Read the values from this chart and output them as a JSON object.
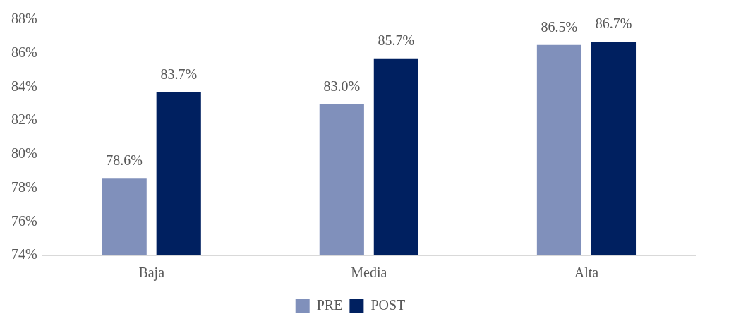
{
  "chart_data": {
    "type": "bar",
    "categories": [
      "Baja",
      "Media",
      "Alta"
    ],
    "series": [
      {
        "name": "PRE",
        "color": "#8090bb",
        "values": [
          78.6,
          83.0,
          86.5
        ],
        "value_labels": [
          "78.6%",
          "83.0%",
          "86.5%"
        ]
      },
      {
        "name": "POST",
        "color": "#002060",
        "values": [
          83.7,
          85.7,
          86.7
        ],
        "value_labels": [
          "83.7%",
          "85.7%",
          "86.7%"
        ]
      }
    ],
    "ylim": [
      74,
      88
    ],
    "yticks": [
      {
        "value": 74,
        "label": "74%"
      },
      {
        "value": 76,
        "label": "76%"
      },
      {
        "value": 78,
        "label": "78%"
      },
      {
        "value": 80,
        "label": "80%"
      },
      {
        "value": 82,
        "label": "82%"
      },
      {
        "value": 84,
        "label": "84%"
      },
      {
        "value": 86,
        "label": "86%"
      },
      {
        "value": 88,
        "label": "88%"
      }
    ],
    "grid": false,
    "legend": "bottom"
  }
}
